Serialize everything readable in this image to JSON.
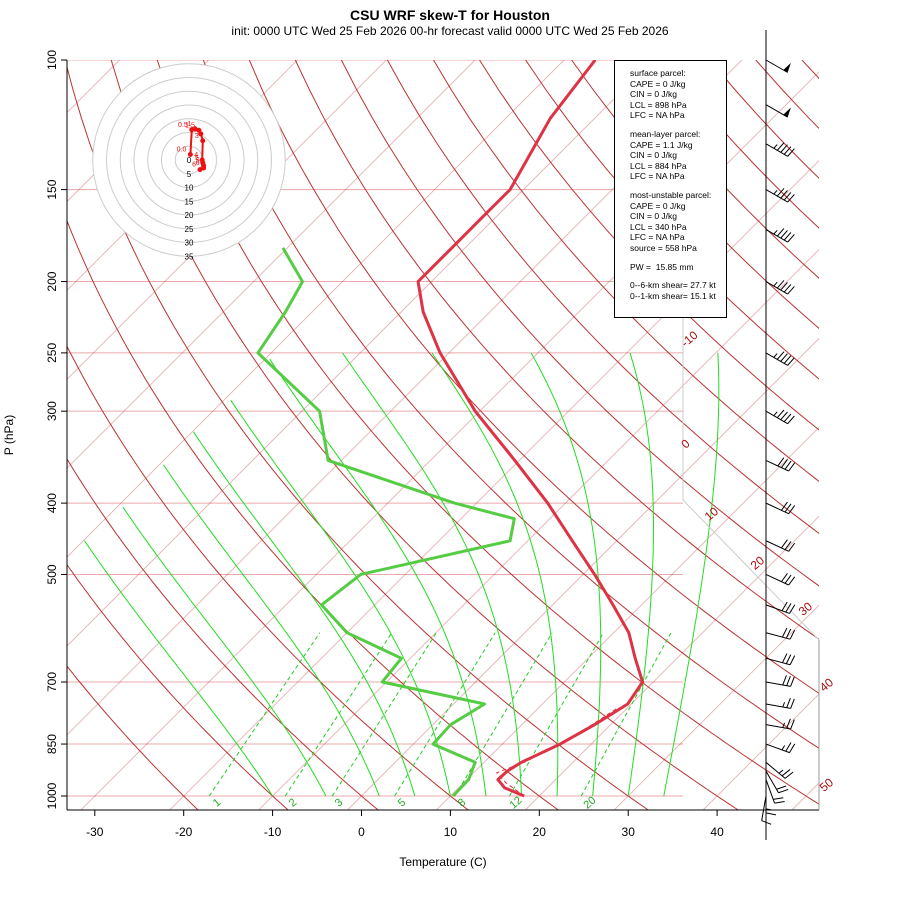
{
  "title": "CSU WRF skew-T for Houston",
  "subtitle": "init: 0000 UTC Wed 25 Feb 2026     00-hr forecast valid 0000 UTC Wed 25 Feb 2026",
  "info": {
    "surface_header": "surface parcel:",
    "surface_cape": "CAPE = 0 J/kg",
    "surface_cin": "CIN = 0 J/kg",
    "surface_lcl": "LCL = 898 hPa",
    "surface_lfc": "LFC = NA hPa",
    "ml_header": "mean-layer parcel:",
    "ml_cape": "CAPE = 1.1 J/kg",
    "ml_cin": "CIN = 0 J/kg",
    "ml_lcl": "LCL = 884 hPa",
    "ml_lfc": "LFC = NA hPa",
    "mu_header": "most-unstable parcel:",
    "mu_cape": "CAPE = 0 J/kg",
    "mu_cin": "CIN = 0 J/kg",
    "mu_lcl": "LCL = 340 hPa",
    "mu_lfc": "LFC = NA hPa",
    "mu_source": "source = 558 hPa",
    "pw": "PW =  15.85 mm",
    "shear6": "0--6-km shear= 27.7 kt",
    "shear1": "0--1-km shear= 15.1 kt"
  },
  "colors": {
    "temperature": "#dd3344",
    "dewpoint": "#55cc44",
    "isotherm": "#bb3333",
    "isobar": "#e8aaaa",
    "moist_adiabat": "#22dd22",
    "mixing_ratio": "#22cc22",
    "hodograph": "#ee1111"
  },
  "chart_data": {
    "type": "skew-t",
    "title": "CSU WRF skew-T for Houston",
    "xlabel": "Temperature (C)",
    "ylabel": "P (hPa)",
    "x_ticks": [
      -30,
      -20,
      -10,
      0,
      10,
      20,
      30,
      40
    ],
    "xlim": [
      -33,
      51
    ],
    "y_ticks": [
      100,
      150,
      200,
      250,
      300,
      400,
      500,
      700,
      850,
      1000
    ],
    "ylim": [
      1050,
      100
    ],
    "isotherm_labels": [
      -10,
      0,
      10,
      20,
      30,
      40,
      50
    ],
    "mixing_ratio_labels": [
      1,
      2,
      3,
      5,
      8,
      12,
      20
    ],
    "temperature": [
      {
        "p": 1000,
        "t": 18.3
      },
      {
        "p": 975,
        "t": 15.2
      },
      {
        "p": 950,
        "t": 13.5
      },
      {
        "p": 925,
        "t": 13.6
      },
      {
        "p": 900,
        "t": 14.2
      },
      {
        "p": 850,
        "t": 16.5
      },
      {
        "p": 800,
        "t": 18.2
      },
      {
        "p": 750,
        "t": 19.6
      },
      {
        "p": 700,
        "t": 18.8
      },
      {
        "p": 650,
        "t": 15.3
      },
      {
        "p": 600,
        "t": 11.7
      },
      {
        "p": 550,
        "t": 6.8
      },
      {
        "p": 500,
        "t": 1.3
      },
      {
        "p": 450,
        "t": -5.0
      },
      {
        "p": 400,
        "t": -12.0
      },
      {
        "p": 350,
        "t": -20.5
      },
      {
        "p": 300,
        "t": -30.5
      },
      {
        "p": 250,
        "t": -41.0
      },
      {
        "p": 220,
        "t": -47.5
      },
      {
        "p": 200,
        "t": -51.5
      },
      {
        "p": 180,
        "t": -51.5
      },
      {
        "p": 160,
        "t": -51.5
      },
      {
        "p": 150,
        "t": -51.5
      },
      {
        "p": 120,
        "t": -55.0
      },
      {
        "p": 100,
        "t": -56.5
      }
    ],
    "parcel": [
      {
        "p": 1000,
        "t": 18.3
      },
      {
        "p": 960,
        "t": 14.8
      },
      {
        "p": 930,
        "t": 12.6
      },
      {
        "p": 900,
        "t": 14.5
      },
      {
        "p": 850,
        "t": 16.5
      },
      {
        "p": 800,
        "t": 17.9
      },
      {
        "p": 760,
        "t": 18.9
      }
    ],
    "dewpoint": [
      {
        "p": 1000,
        "t": 10.3
      },
      {
        "p": 950,
        "t": 10.2
      },
      {
        "p": 900,
        "t": 9.0
      },
      {
        "p": 850,
        "t": 2.2
      },
      {
        "p": 800,
        "t": 2.0
      },
      {
        "p": 750,
        "t": 3.5
      },
      {
        "p": 700,
        "t": -10.5
      },
      {
        "p": 650,
        "t": -11.0
      },
      {
        "p": 600,
        "t": -20.0
      },
      {
        "p": 550,
        "t": -26.0
      },
      {
        "p": 500,
        "t": -25.0
      },
      {
        "p": 450,
        "t": -12.0
      },
      {
        "p": 420,
        "t": -14.0
      },
      {
        "p": 400,
        "t": -22.5
      },
      {
        "p": 350,
        "t": -41.5
      },
      {
        "p": 300,
        "t": -48.0
      },
      {
        "p": 250,
        "t": -61.5
      },
      {
        "p": 220,
        "t": -63.0
      },
      {
        "p": 200,
        "t": -64.5
      },
      {
        "p": 180,
        "t": -70.5
      }
    ],
    "hodograph": {
      "rings": [
        0,
        5,
        10,
        15,
        20,
        25,
        30,
        35
      ],
      "points": [
        {
          "label": "0.0",
          "u": 0.5,
          "v": 2.0
        },
        {
          "label": "0.5",
          "u": 1.0,
          "v": 11.0
        },
        {
          "label": "1",
          "u": 2.3,
          "v": 11.2
        },
        {
          "label": "1.5",
          "u": 3.6,
          "v": 10.8
        },
        {
          "label": "2",
          "u": 4.3,
          "v": 9.5
        },
        {
          "label": "3",
          "u": 5.0,
          "v": 7.0
        },
        {
          "label": "4",
          "u": 4.8,
          "v": 0
        },
        {
          "label": "5",
          "u": 5.0,
          "v": -1.0
        },
        {
          "label": "5",
          "u": 5.3,
          "v": -2.0
        },
        {
          "label": "6",
          "u": 5.3,
          "v": -2.9
        },
        {
          "label": "6",
          "u": 4.0,
          "v": -3.5
        }
      ]
    },
    "wind_barbs": [
      {
        "p": 1000,
        "speed": 10,
        "dir": 170
      },
      {
        "p": 975,
        "speed": 15,
        "dir": 180
      },
      {
        "p": 950,
        "speed": 20,
        "dir": 200
      },
      {
        "p": 925,
        "speed": 20,
        "dir": 210
      },
      {
        "p": 900,
        "speed": 25,
        "dir": 230
      },
      {
        "p": 850,
        "speed": 25,
        "dir": 250
      },
      {
        "p": 800,
        "speed": 25,
        "dir": 260
      },
      {
        "p": 750,
        "speed": 25,
        "dir": 260
      },
      {
        "p": 700,
        "speed": 30,
        "dir": 260
      },
      {
        "p": 650,
        "speed": 30,
        "dir": 255
      },
      {
        "p": 600,
        "speed": 30,
        "dir": 255
      },
      {
        "p": 550,
        "speed": 30,
        "dir": 250
      },
      {
        "p": 500,
        "speed": 30,
        "dir": 245
      },
      {
        "p": 450,
        "speed": 30,
        "dir": 245
      },
      {
        "p": 400,
        "speed": 30,
        "dir": 245
      },
      {
        "p": 350,
        "speed": 40,
        "dir": 245
      },
      {
        "p": 300,
        "speed": 45,
        "dir": 240
      },
      {
        "p": 250,
        "speed": 45,
        "dir": 240
      },
      {
        "p": 200,
        "speed": 45,
        "dir": 240
      },
      {
        "p": 170,
        "speed": 45,
        "dir": 240
      },
      {
        "p": 150,
        "speed": 45,
        "dir": 240
      },
      {
        "p": 130,
        "speed": 45,
        "dir": 240
      },
      {
        "p": 115,
        "speed": 50,
        "dir": 240
      },
      {
        "p": 100,
        "speed": 50,
        "dir": 240
      }
    ]
  }
}
